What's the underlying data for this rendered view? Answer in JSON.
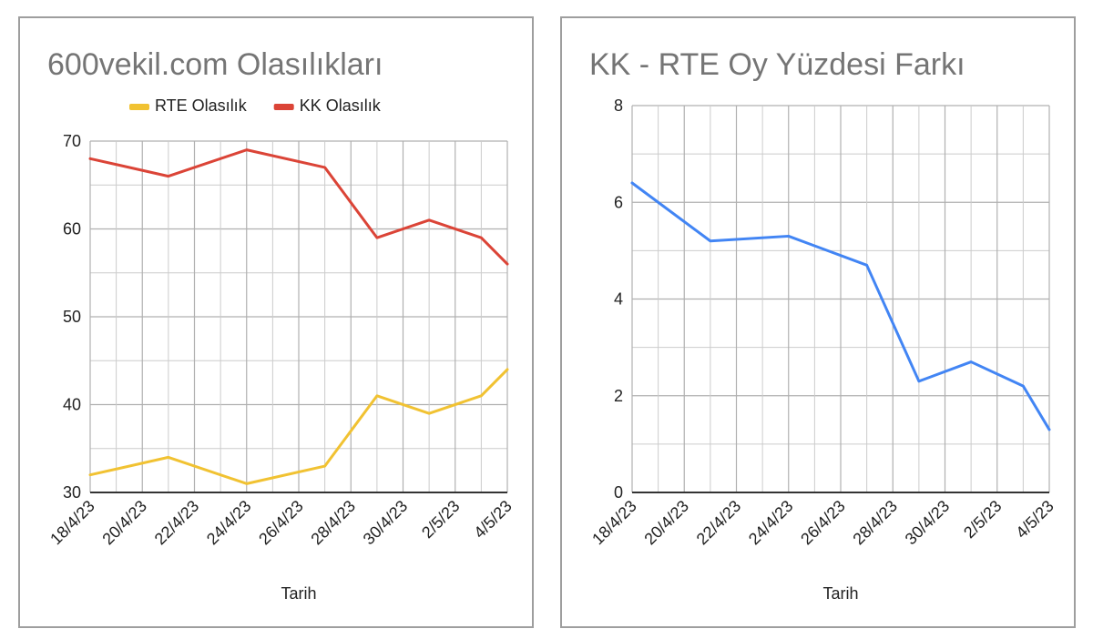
{
  "chart_data": [
    {
      "type": "line",
      "title": "600vekil.com Olasılıkları",
      "xlabel": "Tarih",
      "ylabel": "",
      "ylim": [
        30,
        70
      ],
      "yticks": [
        30,
        40,
        50,
        60,
        70
      ],
      "x": [
        "18/4/23",
        "19/4/23",
        "20/4/23",
        "21/4/23",
        "22/4/23",
        "23/4/23",
        "24/4/23",
        "25/4/23",
        "26/4/23",
        "27/4/23",
        "28/4/23",
        "29/4/23",
        "30/4/23",
        "1/5/23",
        "2/5/23",
        "3/5/23",
        "4/5/23"
      ],
      "xtick_labels": [
        "18/4/23",
        "20/4/23",
        "22/4/23",
        "24/4/23",
        "26/4/23",
        "28/4/23",
        "30/4/23",
        "2/5/23",
        "4/5/23"
      ],
      "grid": true,
      "legend_position": "top",
      "series": [
        {
          "name": "RTE Olasılık",
          "color": "#f1c232",
          "points": [
            [
              "18/4/23",
              32
            ],
            [
              "21/4/23",
              34
            ],
            [
              "24/4/23",
              31
            ],
            [
              "27/4/23",
              33
            ],
            [
              "29/4/23",
              41
            ],
            [
              "1/5/23",
              39
            ],
            [
              "3/5/23",
              41
            ],
            [
              "4/5/23",
              44
            ]
          ]
        },
        {
          "name": "KK Olasılık",
          "color": "#db4437",
          "points": [
            [
              "18/4/23",
              68
            ],
            [
              "21/4/23",
              66
            ],
            [
              "24/4/23",
              69
            ],
            [
              "27/4/23",
              67
            ],
            [
              "29/4/23",
              59
            ],
            [
              "1/5/23",
              61
            ],
            [
              "3/5/23",
              59
            ],
            [
              "4/5/23",
              56
            ]
          ]
        }
      ]
    },
    {
      "type": "line",
      "title": "KK - RTE Oy Yüzdesi Farkı",
      "xlabel": "Tarih",
      "ylabel": "",
      "ylim": [
        0,
        8
      ],
      "yticks": [
        0,
        2,
        4,
        6,
        8
      ],
      "x": [
        "18/4/23",
        "19/4/23",
        "20/4/23",
        "21/4/23",
        "22/4/23",
        "23/4/23",
        "24/4/23",
        "25/4/23",
        "26/4/23",
        "27/4/23",
        "28/4/23",
        "29/4/23",
        "30/4/23",
        "1/5/23",
        "2/5/23",
        "3/5/23",
        "4/5/23"
      ],
      "xtick_labels": [
        "18/4/23",
        "20/4/23",
        "22/4/23",
        "24/4/23",
        "26/4/23",
        "28/4/23",
        "30/4/23",
        "2/5/23",
        "4/5/23"
      ],
      "grid": true,
      "series": [
        {
          "color": "#4285f4",
          "points": [
            [
              "18/4/23",
              6.4
            ],
            [
              "21/4/23",
              5.2
            ],
            [
              "24/4/23",
              5.3
            ],
            [
              "27/4/23",
              4.7
            ],
            [
              "29/4/23",
              2.3
            ],
            [
              "1/5/23",
              2.7
            ],
            [
              "3/5/23",
              2.2
            ],
            [
              "4/5/23",
              1.3
            ]
          ]
        }
      ]
    }
  ]
}
